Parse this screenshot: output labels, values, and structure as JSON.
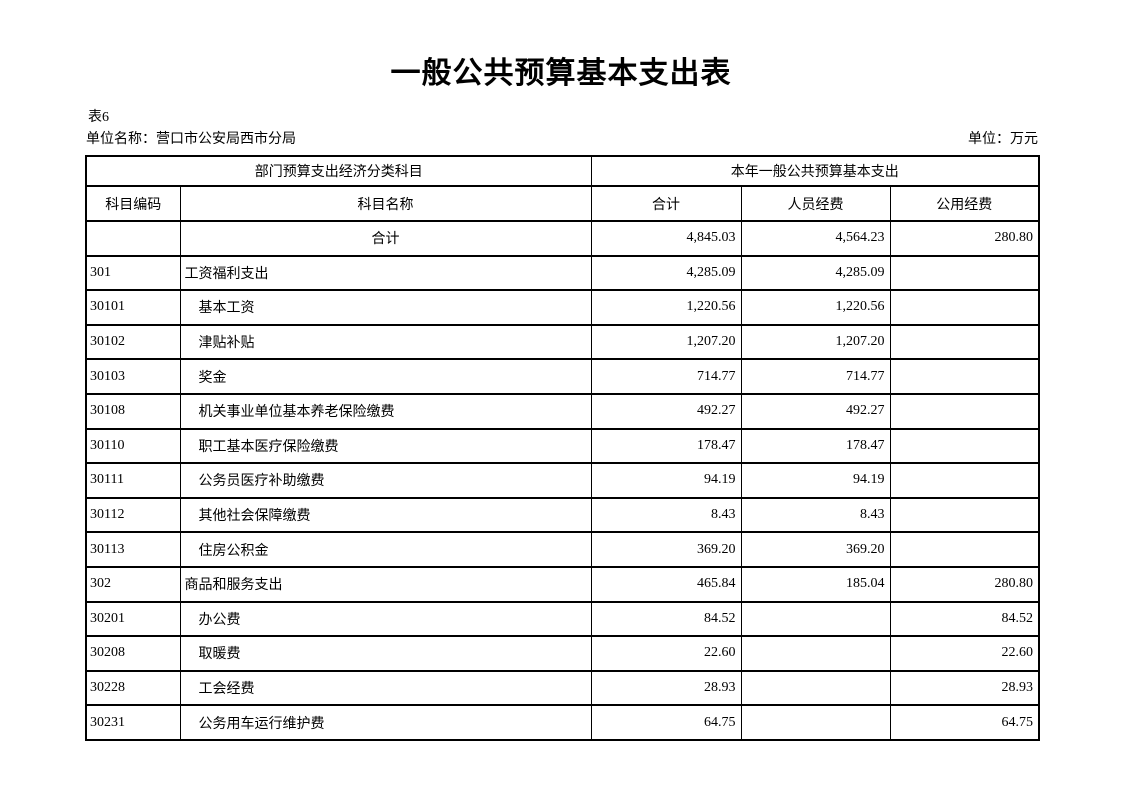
{
  "page": {
    "title": "一般公共预算基本支出表",
    "table_no": "表6",
    "unit_name": "单位名称：营口市公安局西市分局",
    "unit": "单位：万元"
  },
  "table": {
    "header": {
      "group_left": "部门预算支出经济分类科目",
      "group_right": "本年一般公共预算基本支出",
      "columns": [
        "科目编码",
        "科目名称",
        "合计",
        "人员经费",
        "公用经费"
      ]
    },
    "rows": [
      {
        "code": "",
        "name": "合计",
        "total": "4,845.03",
        "personnel": "4,564.23",
        "public": "280.80",
        "level": "total"
      },
      {
        "code": "301",
        "name": "工资福利支出",
        "total": "4,285.09",
        "personnel": "4,285.09",
        "public": "",
        "level": "category"
      },
      {
        "code": "30101",
        "name": "基本工资",
        "total": "1,220.56",
        "personnel": "1,220.56",
        "public": "",
        "level": "item"
      },
      {
        "code": "30102",
        "name": "津贴补贴",
        "total": "1,207.20",
        "personnel": "1,207.20",
        "public": "",
        "level": "item"
      },
      {
        "code": "30103",
        "name": "奖金",
        "total": "714.77",
        "personnel": "714.77",
        "public": "",
        "level": "item"
      },
      {
        "code": "30108",
        "name": "机关事业单位基本养老保险缴费",
        "total": "492.27",
        "personnel": "492.27",
        "public": "",
        "level": "item"
      },
      {
        "code": "30110",
        "name": "职工基本医疗保险缴费",
        "total": "178.47",
        "personnel": "178.47",
        "public": "",
        "level": "item"
      },
      {
        "code": "30111",
        "name": "公务员医疗补助缴费",
        "total": "94.19",
        "personnel": "94.19",
        "public": "",
        "level": "item"
      },
      {
        "code": "30112",
        "name": "其他社会保障缴费",
        "total": "8.43",
        "personnel": "8.43",
        "public": "",
        "level": "item"
      },
      {
        "code": "30113",
        "name": "住房公积金",
        "total": "369.20",
        "personnel": "369.20",
        "public": "",
        "level": "item"
      },
      {
        "code": "302",
        "name": "商品和服务支出",
        "total": "465.84",
        "personnel": "185.04",
        "public": "280.80",
        "level": "category"
      },
      {
        "code": "30201",
        "name": "办公费",
        "total": "84.52",
        "personnel": "",
        "public": "84.52",
        "level": "item"
      },
      {
        "code": "30208",
        "name": "取暖费",
        "total": "22.60",
        "personnel": "",
        "public": "22.60",
        "level": "item"
      },
      {
        "code": "30228",
        "name": "工会经费",
        "total": "28.93",
        "personnel": "",
        "public": "28.93",
        "level": "item"
      },
      {
        "code": "30231",
        "name": "公务用车运行维护费",
        "total": "64.75",
        "personnel": "",
        "public": "64.75",
        "level": "item"
      }
    ]
  }
}
